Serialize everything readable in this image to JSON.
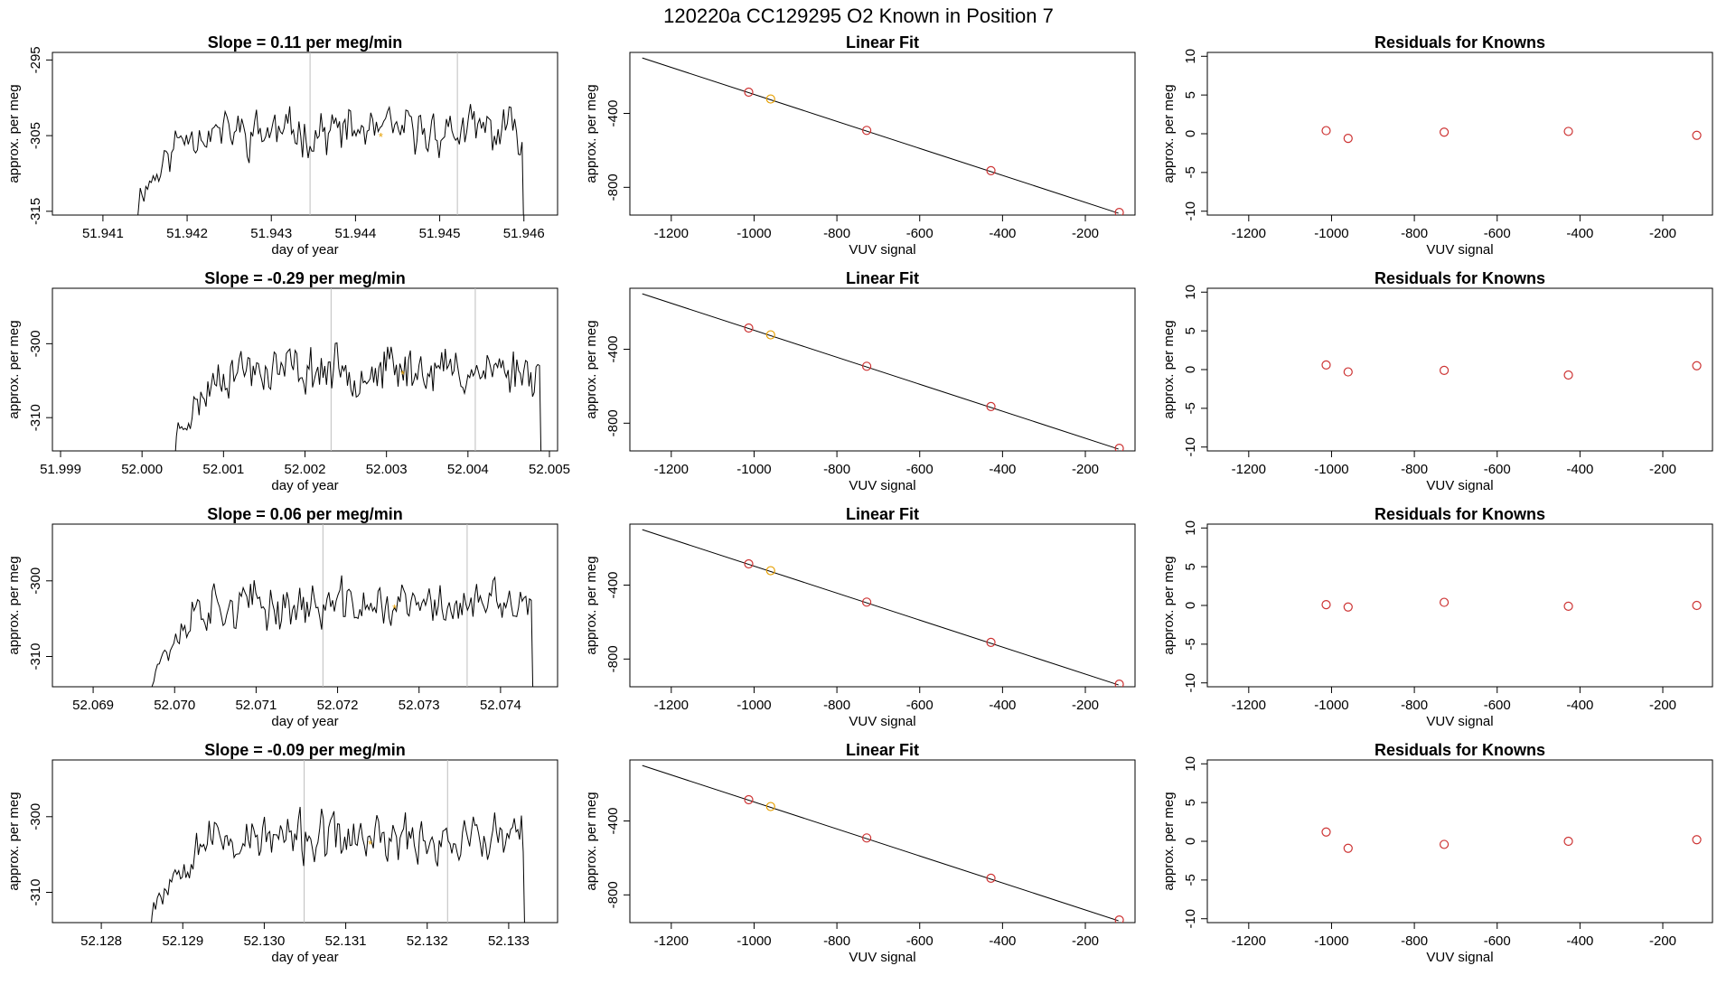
{
  "figure": {
    "title": "120220a      CC129295   O2 Known in Position  7"
  },
  "colors": {
    "line": "#000000",
    "marker": "#cd3333",
    "highlight": "#e69f00",
    "vline": "#bebebe",
    "frame": "#000000"
  },
  "chart_data": [
    {
      "type": "line",
      "title": "Slope =  0.11  per meg/min",
      "xlabel": "day of year",
      "ylabel": "approx. per meg",
      "xlim": [
        51.9404,
        51.9464
      ],
      "ylim": [
        -315.5,
        -294.0
      ],
      "xticks": [
        51.941,
        51.942,
        51.943,
        51.944,
        51.945,
        51.946
      ],
      "xtick_labels": [
        "51.941",
        "51.942",
        "51.943",
        "51.944",
        "51.945",
        "51.946"
      ],
      "yticks": [
        -295,
        -305,
        -315
      ],
      "ytick_labels": [
        "-295",
        "-305",
        "-315"
      ],
      "vlines": [
        51.94346,
        51.94521
      ],
      "series_start": 51.9414,
      "series_end": 51.946,
      "series_mean": -304.5,
      "series_amp": 2.4,
      "seed": 11,
      "highlight": {
        "x": 51.9443,
        "y": -305.0,
        "label": "*"
      }
    },
    {
      "type": "scatter",
      "title": "Linear Fit",
      "xlabel": "VUV signal",
      "ylabel": "approx. per meg",
      "xlim": [
        -1300,
        -80
      ],
      "ylim": [
        -950,
        -70
      ],
      "xticks": [
        -1200,
        -1000,
        -800,
        -600,
        -400,
        -200
      ],
      "xtick_labels": [
        "-1200",
        "-1000",
        "-800",
        "-600",
        "-400",
        "-200"
      ],
      "yticks": [
        -400,
        -800
      ],
      "ytick_labels": [
        "-400",
        "-800"
      ],
      "fit_line": [
        [
          -1270,
          -100
        ],
        [
          -120,
          -940
        ]
      ],
      "points": [
        {
          "x": -1013,
          "y": -285,
          "kind": "known"
        },
        {
          "x": -960,
          "y": -322,
          "kind": "reference"
        },
        {
          "x": -728,
          "y": -492,
          "kind": "known"
        },
        {
          "x": -428,
          "y": -710,
          "kind": "known"
        },
        {
          "x": -118,
          "y": -936,
          "kind": "known"
        }
      ]
    },
    {
      "type": "scatter",
      "title": "Residuals for Knowns",
      "xlabel": "VUV signal",
      "ylabel": "approx. per meg",
      "xlim": [
        -1300,
        -80
      ],
      "ylim": [
        -10.5,
        10.5
      ],
      "xticks": [
        -1200,
        -1000,
        -800,
        -600,
        -400,
        -200
      ],
      "xtick_labels": [
        "-1200",
        "-1000",
        "-800",
        "-600",
        "-400",
        "-200"
      ],
      "yticks": [
        10,
        5,
        0,
        -5,
        -10
      ],
      "ytick_labels": [
        "10",
        "5",
        "0",
        "-5",
        "-10"
      ],
      "points": [
        {
          "x": -1013,
          "y": 0.4
        },
        {
          "x": -960,
          "y": -0.6
        },
        {
          "x": -728,
          "y": 0.2
        },
        {
          "x": -428,
          "y": 0.3
        },
        {
          "x": -118,
          "y": -0.2
        }
      ]
    },
    {
      "type": "line",
      "title": "Slope =  -0.29  per meg/min",
      "xlabel": "day of year",
      "ylabel": "approx. per meg",
      "xlim": [
        51.9989,
        52.0051
      ],
      "ylim": [
        -314.5,
        -292.5
      ],
      "xticks": [
        51.999,
        52.0,
        52.001,
        52.002,
        52.003,
        52.004,
        52.005
      ],
      "xtick_labels": [
        "51.999",
        "52.000",
        "52.001",
        "52.002",
        "52.003",
        "52.004",
        "52.005"
      ],
      "yticks": [
        -300,
        -310
      ],
      "ytick_labels": [
        "-300",
        "-310"
      ],
      "vlines": [
        52.00232,
        52.00409
      ],
      "series_start": 52.0004,
      "series_end": 52.0049,
      "series_mean": -303.5,
      "series_amp": 2.6,
      "seed": 23,
      "highlight": {
        "x": 52.0032,
        "y": -304.0,
        "label": "*"
      }
    },
    {
      "type": "scatter",
      "title": "Linear Fit",
      "xlabel": "VUV signal",
      "ylabel": "approx. per meg",
      "xlim": [
        -1300,
        -80
      ],
      "ylim": [
        -950,
        -70
      ],
      "xticks": [
        -1200,
        -1000,
        -800,
        -600,
        -400,
        -200
      ],
      "xtick_labels": [
        "-1200",
        "-1000",
        "-800",
        "-600",
        "-400",
        "-200"
      ],
      "yticks": [
        -400,
        -800
      ],
      "ytick_labels": [
        "-400",
        "-800"
      ],
      "fit_line": [
        [
          -1270,
          -100
        ],
        [
          -120,
          -940
        ]
      ],
      "points": [
        {
          "x": -1013,
          "y": -285,
          "kind": "known"
        },
        {
          "x": -960,
          "y": -322,
          "kind": "reference"
        },
        {
          "x": -728,
          "y": -492,
          "kind": "known"
        },
        {
          "x": -428,
          "y": -710,
          "kind": "known"
        },
        {
          "x": -118,
          "y": -936,
          "kind": "known"
        }
      ]
    },
    {
      "type": "scatter",
      "title": "Residuals for Knowns",
      "xlabel": "VUV signal",
      "ylabel": "approx. per meg",
      "xlim": [
        -1300,
        -80
      ],
      "ylim": [
        -10.5,
        10.5
      ],
      "xticks": [
        -1200,
        -1000,
        -800,
        -600,
        -400,
        -200
      ],
      "xtick_labels": [
        "-1200",
        "-1000",
        "-800",
        "-600",
        "-400",
        "-200"
      ],
      "yticks": [
        10,
        5,
        0,
        -5,
        -10
      ],
      "ytick_labels": [
        "10",
        "5",
        "0",
        "-5",
        "-10"
      ],
      "points": [
        {
          "x": -1013,
          "y": 0.6
        },
        {
          "x": -960,
          "y": -0.3
        },
        {
          "x": -728,
          "y": -0.1
        },
        {
          "x": -428,
          "y": -0.7
        },
        {
          "x": -118,
          "y": 0.5
        }
      ]
    },
    {
      "type": "line",
      "title": "Slope =  0.06  per meg/min",
      "xlabel": "day of year",
      "ylabel": "approx. per meg",
      "xlim": [
        52.0685,
        52.0747
      ],
      "ylim": [
        -314.0,
        -292.5
      ],
      "xticks": [
        52.069,
        52.07,
        52.071,
        52.072,
        52.073,
        52.074
      ],
      "xtick_labels": [
        "52.069",
        "52.070",
        "52.071",
        "52.072",
        "52.073",
        "52.074"
      ],
      "yticks": [
        -300,
        -310
      ],
      "ytick_labels": [
        "-300",
        "-310"
      ],
      "vlines": [
        52.07182,
        52.07359
      ],
      "series_start": 52.0697,
      "series_end": 52.0744,
      "series_mean": -303.3,
      "series_amp": 2.5,
      "seed": 37,
      "highlight": {
        "x": 52.0727,
        "y": -303.5,
        "label": "*"
      }
    },
    {
      "type": "scatter",
      "title": "Linear Fit",
      "xlabel": "VUV signal",
      "ylabel": "approx. per meg",
      "xlim": [
        -1300,
        -80
      ],
      "ylim": [
        -950,
        -70
      ],
      "xticks": [
        -1200,
        -1000,
        -800,
        -600,
        -400,
        -200
      ],
      "xtick_labels": [
        "-1200",
        "-1000",
        "-800",
        "-600",
        "-400",
        "-200"
      ],
      "yticks": [
        -400,
        -800
      ],
      "ytick_labels": [
        "-400",
        "-800"
      ],
      "fit_line": [
        [
          -1270,
          -100
        ],
        [
          -120,
          -940
        ]
      ],
      "points": [
        {
          "x": -1013,
          "y": -285,
          "kind": "known"
        },
        {
          "x": -960,
          "y": -322,
          "kind": "reference"
        },
        {
          "x": -728,
          "y": -492,
          "kind": "known"
        },
        {
          "x": -428,
          "y": -710,
          "kind": "known"
        },
        {
          "x": -118,
          "y": -936,
          "kind": "known"
        }
      ]
    },
    {
      "type": "scatter",
      "title": "Residuals for Knowns",
      "xlabel": "VUV signal",
      "ylabel": "approx. per meg",
      "xlim": [
        -1300,
        -80
      ],
      "ylim": [
        -10.5,
        10.5
      ],
      "xticks": [
        -1200,
        -1000,
        -800,
        -600,
        -400,
        -200
      ],
      "xtick_labels": [
        "-1200",
        "-1000",
        "-800",
        "-600",
        "-400",
        "-200"
      ],
      "yticks": [
        10,
        5,
        0,
        -5,
        -10
      ],
      "ytick_labels": [
        "10",
        "5",
        "0",
        "-5",
        "-10"
      ],
      "points": [
        {
          "x": -1013,
          "y": 0.1
        },
        {
          "x": -960,
          "y": -0.2
        },
        {
          "x": -728,
          "y": 0.4
        },
        {
          "x": -428,
          "y": -0.1
        },
        {
          "x": -118,
          "y": 0.0
        }
      ]
    },
    {
      "type": "line",
      "title": "Slope =  -0.09  per meg/min",
      "xlabel": "day of year",
      "ylabel": "approx. per meg",
      "xlim": [
        52.1274,
        52.1336
      ],
      "ylim": [
        -314.0,
        -292.5
      ],
      "xticks": [
        52.128,
        52.129,
        52.13,
        52.131,
        52.132,
        52.133
      ],
      "xtick_labels": [
        "52.128",
        "52.129",
        "52.130",
        "52.131",
        "52.132",
        "52.133"
      ],
      "yticks": [
        -300,
        -310
      ],
      "ytick_labels": [
        "-300",
        "-310"
      ],
      "vlines": [
        52.13049,
        52.13225
      ],
      "series_start": 52.1286,
      "series_end": 52.1332,
      "series_mean": -303.0,
      "series_amp": 2.6,
      "seed": 53,
      "highlight": {
        "x": 52.1313,
        "y": -303.5,
        "label": "*"
      }
    },
    {
      "type": "scatter",
      "title": "Linear Fit",
      "xlabel": "VUV signal",
      "ylabel": "approx. per meg",
      "xlim": [
        -1300,
        -80
      ],
      "ylim": [
        -950,
        -70
      ],
      "xticks": [
        -1200,
        -1000,
        -800,
        -600,
        -400,
        -200
      ],
      "xtick_labels": [
        "-1200",
        "-1000",
        "-800",
        "-600",
        "-400",
        "-200"
      ],
      "yticks": [
        -400,
        -800
      ],
      "ytick_labels": [
        "-400",
        "-800"
      ],
      "fit_line": [
        [
          -1270,
          -100
        ],
        [
          -120,
          -940
        ]
      ],
      "points": [
        {
          "x": -1013,
          "y": -285,
          "kind": "known"
        },
        {
          "x": -960,
          "y": -322,
          "kind": "reference"
        },
        {
          "x": -728,
          "y": -492,
          "kind": "known"
        },
        {
          "x": -428,
          "y": -710,
          "kind": "known"
        },
        {
          "x": -118,
          "y": -936,
          "kind": "known"
        }
      ]
    },
    {
      "type": "scatter",
      "title": "Residuals for Knowns",
      "xlabel": "VUV signal",
      "ylabel": "approx. per meg",
      "xlim": [
        -1300,
        -80
      ],
      "ylim": [
        -10.5,
        10.5
      ],
      "xticks": [
        -1200,
        -1000,
        -800,
        -600,
        -400,
        -200
      ],
      "xtick_labels": [
        "-1200",
        "-1000",
        "-800",
        "-600",
        "-400",
        "-200"
      ],
      "yticks": [
        10,
        5,
        0,
        -5,
        -10
      ],
      "ytick_labels": [
        "10",
        "5",
        "0",
        "-5",
        "-10"
      ],
      "points": [
        {
          "x": -1013,
          "y": 1.2
        },
        {
          "x": -960,
          "y": -0.9
        },
        {
          "x": -728,
          "y": -0.4
        },
        {
          "x": -428,
          "y": 0.0
        },
        {
          "x": -118,
          "y": 0.2
        }
      ]
    }
  ]
}
